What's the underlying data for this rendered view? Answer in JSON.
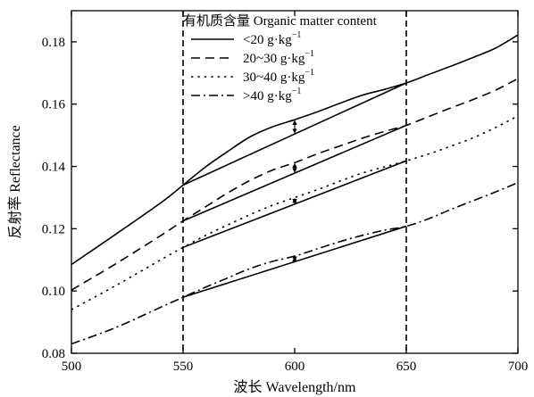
{
  "chart_data": {
    "type": "line",
    "xlabel": "波长 Wavelength/nm",
    "ylabel": "反射率 Reflectance",
    "xlim": [
      500,
      700
    ],
    "ylim": [
      0.08,
      0.19
    ],
    "xticks": [
      500,
      550,
      600,
      650,
      700
    ],
    "yticks": [
      0.08,
      0.1,
      0.12,
      0.14,
      0.16,
      0.18
    ],
    "ytick_labels": [
      "0.08",
      "0.10",
      "0.12",
      "0.14",
      "0.16",
      "0.18"
    ],
    "grid": false,
    "legend": {
      "title": "有机质含量 Organic matter content",
      "placement": "top-center",
      "entries": [
        {
          "name": "<20 g·kg",
          "sup": "−1",
          "style": "solid"
        },
        {
          "name": "20~30 g·kg",
          "sup": "−1",
          "style": "dashed"
        },
        {
          "name": "30~40 g·kg",
          "sup": "−1",
          "style": "dotted"
        },
        {
          "name": ">40 g·kg",
          "sup": "−1",
          "style": "dashdot"
        }
      ]
    },
    "series": [
      {
        "name": "<20 g·kg−1",
        "style": "solid",
        "x": [
          500,
          520,
          540,
          550,
          560,
          570,
          580,
          590,
          600,
          610,
          620,
          630,
          640,
          650,
          660,
          670,
          680,
          690,
          700
        ],
        "y": [
          0.1085,
          0.1183,
          0.1283,
          0.134,
          0.1398,
          0.1448,
          0.1495,
          0.1527,
          0.155,
          0.1575,
          0.1602,
          0.1628,
          0.1647,
          0.1668,
          0.1695,
          0.1722,
          0.175,
          0.178,
          0.1822
        ]
      },
      {
        "name": "20~30 g·kg−1",
        "style": "dashed",
        "x": [
          500,
          520,
          540,
          550,
          560,
          570,
          580,
          590,
          600,
          610,
          620,
          630,
          640,
          650,
          660,
          670,
          680,
          690,
          700
        ],
        "y": [
          0.1003,
          0.1088,
          0.1178,
          0.1225,
          0.127,
          0.1315,
          0.1355,
          0.1388,
          0.1412,
          0.144,
          0.1465,
          0.149,
          0.1512,
          0.1532,
          0.156,
          0.1588,
          0.1615,
          0.1645,
          0.1682
        ]
      },
      {
        "name": "30~40 g·kg−1",
        "style": "dotted",
        "x": [
          500,
          520,
          540,
          550,
          560,
          570,
          580,
          590,
          600,
          610,
          620,
          630,
          640,
          650,
          660,
          670,
          680,
          690,
          700
        ],
        "y": [
          0.094,
          0.1018,
          0.11,
          0.114,
          0.1178,
          0.1212,
          0.1245,
          0.1275,
          0.13,
          0.1325,
          0.1352,
          0.1378,
          0.1398,
          0.1418,
          0.144,
          0.1465,
          0.1492,
          0.1525,
          0.1562
        ]
      },
      {
        "name": ">40 g·kg−1",
        "style": "dashdot",
        "x": [
          500,
          520,
          540,
          550,
          560,
          570,
          580,
          590,
          600,
          610,
          620,
          630,
          640,
          650,
          660,
          670,
          680,
          690,
          700
        ],
        "y": [
          0.083,
          0.0883,
          0.0948,
          0.098,
          0.1012,
          0.1042,
          0.1072,
          0.1095,
          0.1112,
          0.1135,
          0.1158,
          0.1178,
          0.1195,
          0.1208,
          0.1232,
          0.1262,
          0.129,
          0.1318,
          0.1348
        ]
      }
    ],
    "guide_lines_x": [
      550,
      650
    ],
    "chords": [
      {
        "x": [
          550,
          650
        ],
        "y": [
          0.134,
          0.1668
        ]
      },
      {
        "x": [
          550,
          650
        ],
        "y": [
          0.1225,
          0.1532
        ]
      },
      {
        "x": [
          550,
          650
        ],
        "y": [
          0.114,
          0.1418
        ]
      },
      {
        "x": [
          550,
          650
        ],
        "y": [
          0.098,
          0.1208
        ]
      }
    ],
    "difference_markers_at_600": [
      {
        "series": "<20 g·kg−1",
        "curve": 0.155,
        "chord": 0.1504
      },
      {
        "series": "20~30 g·kg−1",
        "curve": 0.1412,
        "chord": 0.1378
      },
      {
        "series": "30~40 g·kg−1",
        "curve": 0.13,
        "chord": 0.1279
      },
      {
        "series": ">40 g·kg−1",
        "curve": 0.1112,
        "chord": 0.1094
      }
    ]
  }
}
